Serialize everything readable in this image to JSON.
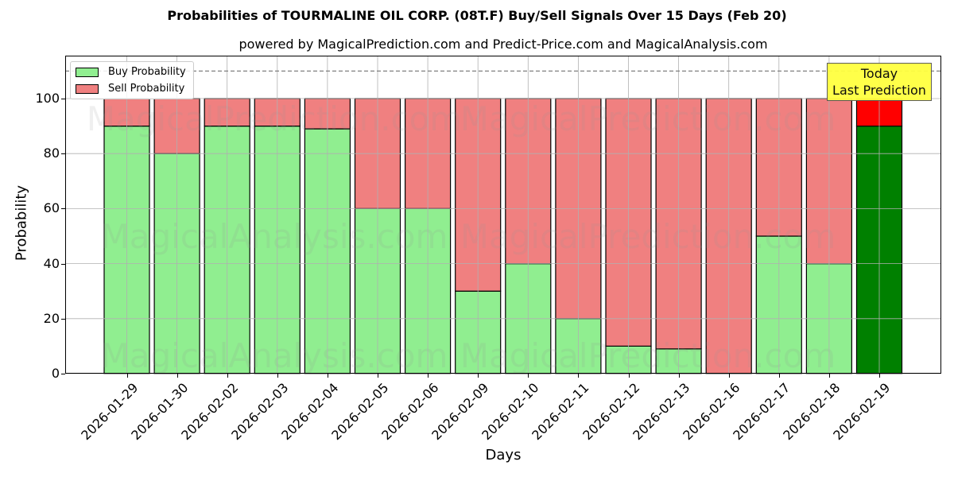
{
  "chart_data": {
    "type": "bar",
    "stacked": true,
    "title": "Probabilities of TOURMALINE OIL CORP. (08T.F) Buy/Sell Signals Over 15 Days (Feb 20)",
    "subtitle": "powered by MagicalPrediction.com and Predict-Price.com and MagicalAnalysis.com",
    "xlabel": "Days",
    "ylabel": "Probability",
    "ylim": [
      0,
      115
    ],
    "yticks": [
      0,
      20,
      40,
      60,
      80,
      100
    ],
    "grid": true,
    "legend_position": "upper left",
    "reference_line": {
      "y": 110,
      "style": "dashed",
      "color": "#808080"
    },
    "categories": [
      "2026-01-29",
      "2026-01-30",
      "2026-02-02",
      "2026-02-03",
      "2026-02-04",
      "2026-02-05",
      "2026-02-06",
      "2026-02-09",
      "2026-02-10",
      "2026-02-11",
      "2026-02-12",
      "2026-02-13",
      "2026-02-16",
      "2026-02-17",
      "2026-02-18",
      "2026-02-19"
    ],
    "series": [
      {
        "name": "Buy Probability",
        "color": "#90ee90",
        "values": [
          90,
          80,
          90,
          90,
          89,
          60,
          60,
          30,
          40,
          20,
          10,
          9,
          0,
          50,
          40,
          90
        ]
      },
      {
        "name": "Sell Probability",
        "color": "#f08080",
        "values": [
          10,
          20,
          10,
          10,
          11,
          40,
          40,
          70,
          60,
          80,
          90,
          91,
          100,
          50,
          60,
          10
        ]
      }
    ],
    "highlight": {
      "index": 15,
      "buy_color": "#008000",
      "sell_color": "#ff0000"
    },
    "annotation": {
      "text_line1": "Today",
      "text_line2": "Last Prediction",
      "background": "#ffff40"
    },
    "watermarks": [
      "MagicalAnalysis.com",
      "MagicalPrediction.com"
    ]
  }
}
